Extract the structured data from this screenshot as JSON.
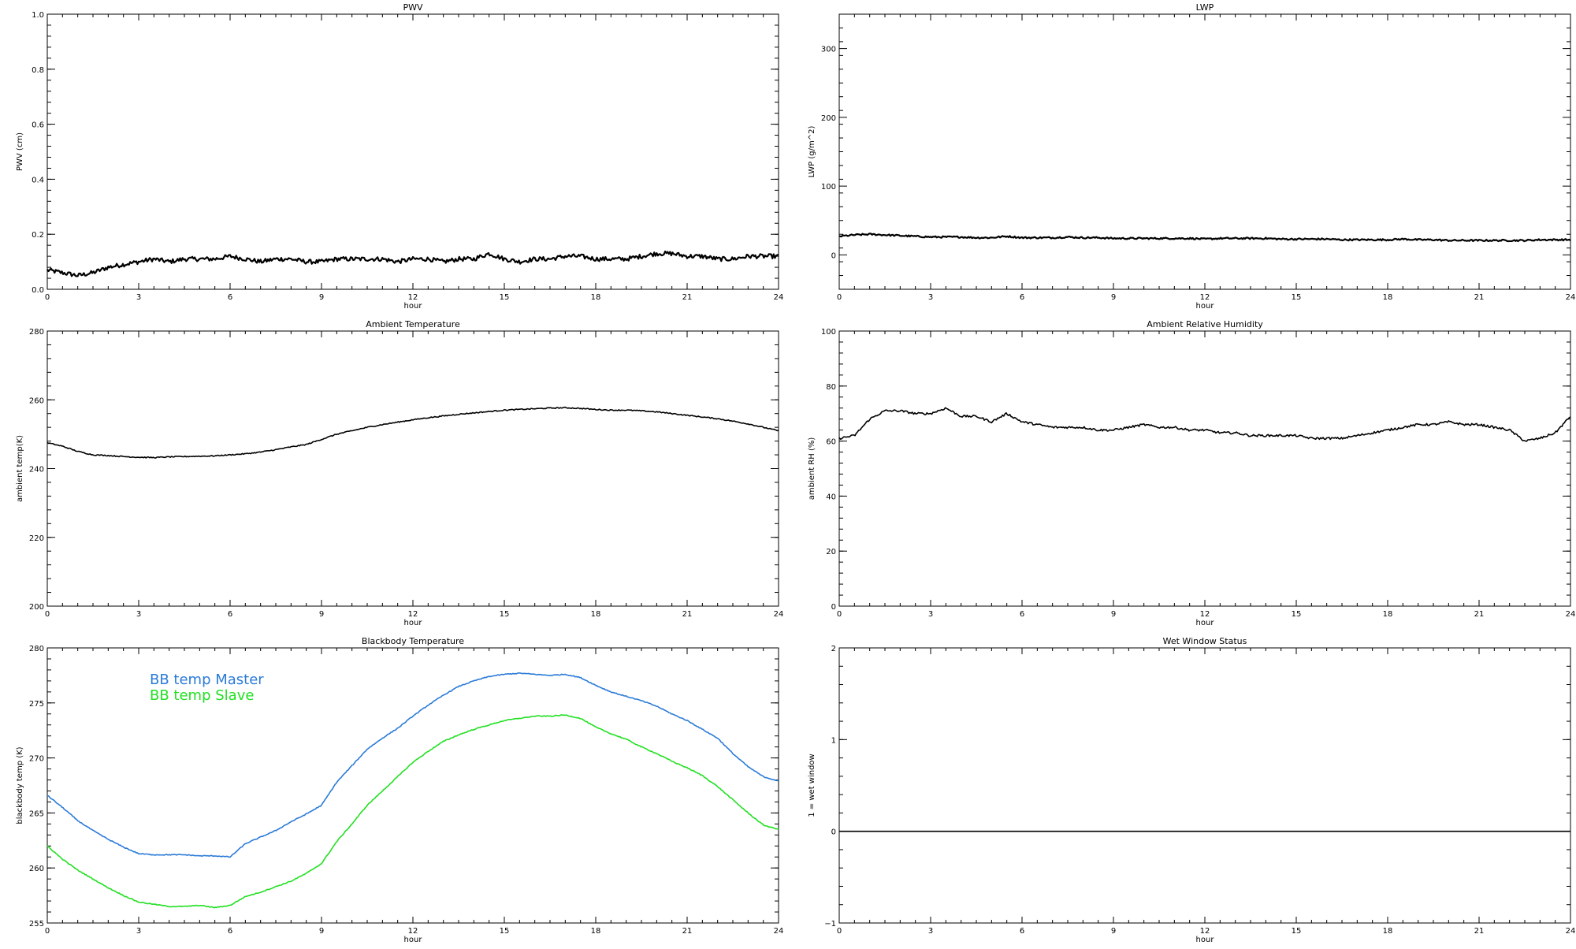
{
  "chart_data": [
    {
      "type": "line",
      "title": "PWV",
      "xlabel": "hour",
      "ylabel": "PWV (cm)",
      "xlim": [
        0,
        24
      ],
      "ylim": [
        0.0,
        1.0
      ],
      "xticks": [
        "0",
        "3",
        "6",
        "9",
        "12",
        "15",
        "18",
        "21",
        "24"
      ],
      "yticks": [
        "0.0",
        "0.2",
        "0.4",
        "0.6",
        "0.8",
        "1.0"
      ],
      "series": [
        {
          "color": "#000000",
          "noise": 0.008,
          "x": [
            0,
            0.5,
            1,
            1.5,
            2,
            2.5,
            3,
            3.5,
            4,
            4.5,
            5,
            5.5,
            6,
            6.5,
            7,
            7.5,
            8,
            8.5,
            9,
            9.5,
            10,
            10.5,
            11,
            11.5,
            12,
            12.5,
            13,
            13.5,
            14,
            14.5,
            15,
            15.5,
            16,
            16.5,
            17,
            17.5,
            18,
            18.5,
            19,
            19.5,
            20,
            20.5,
            21,
            21.5,
            22,
            22.5,
            23,
            23.5,
            24
          ],
          "y": [
            0.07,
            0.06,
            0.05,
            0.06,
            0.08,
            0.09,
            0.1,
            0.11,
            0.1,
            0.11,
            0.11,
            0.11,
            0.12,
            0.11,
            0.1,
            0.11,
            0.11,
            0.1,
            0.1,
            0.11,
            0.11,
            0.11,
            0.11,
            0.1,
            0.11,
            0.11,
            0.1,
            0.11,
            0.11,
            0.13,
            0.11,
            0.1,
            0.11,
            0.11,
            0.12,
            0.12,
            0.11,
            0.11,
            0.11,
            0.12,
            0.13,
            0.13,
            0.12,
            0.12,
            0.11,
            0.11,
            0.12,
            0.12,
            0.12
          ]
        }
      ]
    },
    {
      "type": "line",
      "title": "LWP",
      "xlabel": "hour",
      "ylabel": "LWP (g/m^2)",
      "xlim": [
        0,
        24
      ],
      "ylim": [
        -50,
        350
      ],
      "xticks": [
        "0",
        "3",
        "6",
        "9",
        "12",
        "15",
        "18",
        "21",
        "24"
      ],
      "yticks": [
        "0",
        "100",
        "200",
        "300"
      ],
      "series": [
        {
          "color": "#000000",
          "noise": 1.2,
          "x": [
            0,
            0.5,
            1,
            1.5,
            2,
            2.5,
            3,
            3.5,
            4,
            4.5,
            5,
            5.5,
            6,
            6.5,
            7,
            7.5,
            8,
            8.5,
            9,
            9.5,
            10,
            10.5,
            11,
            11.5,
            12,
            12.5,
            13,
            13.5,
            14,
            14.5,
            15,
            15.5,
            16,
            16.5,
            17,
            17.5,
            18,
            18.5,
            19,
            19.5,
            20,
            20.5,
            21,
            21.5,
            22,
            22.5,
            23,
            23.5,
            24
          ],
          "y": [
            27,
            29,
            30,
            29,
            28,
            27,
            26,
            26,
            26,
            25,
            25,
            27,
            25,
            25,
            25,
            26,
            25,
            25,
            24,
            24,
            24,
            24,
            24,
            24,
            23,
            24,
            24,
            24,
            24,
            23,
            23,
            23,
            23,
            22,
            22,
            22,
            22,
            23,
            22,
            22,
            21,
            21,
            21,
            21,
            21,
            21,
            22,
            22,
            22
          ]
        }
      ]
    },
    {
      "type": "line",
      "title": "Ambient Temperature",
      "xlabel": "hour",
      "ylabel": "ambient temp(K)",
      "xlim": [
        0,
        24
      ],
      "ylim": [
        200,
        280
      ],
      "xticks": [
        "0",
        "3",
        "6",
        "9",
        "12",
        "15",
        "18",
        "21",
        "24"
      ],
      "yticks": [
        "200",
        "220",
        "240",
        "260",
        "280"
      ],
      "series": [
        {
          "color": "#000000",
          "noise": 0.15,
          "x": [
            0,
            0.5,
            1,
            1.5,
            2,
            2.5,
            3,
            3.5,
            4,
            4.5,
            5,
            5.5,
            6,
            6.5,
            7,
            7.5,
            8,
            8.5,
            9,
            9.5,
            10,
            10.5,
            11,
            11.5,
            12,
            12.5,
            13,
            13.5,
            14,
            14.5,
            15,
            15.5,
            16,
            16.5,
            17,
            17.5,
            18,
            18.5,
            19,
            19.5,
            20,
            20.5,
            21,
            21.5,
            22,
            22.5,
            23,
            23.5,
            24
          ],
          "y": [
            247.5,
            246.5,
            245,
            244,
            243.8,
            243.5,
            243.3,
            243.2,
            243.4,
            243.5,
            243.6,
            243.7,
            244,
            244.3,
            244.8,
            245.5,
            246.3,
            247,
            248.5,
            250,
            251,
            252,
            252.8,
            253.5,
            254.2,
            254.8,
            255.3,
            255.8,
            256.2,
            256.6,
            257,
            257.2,
            257.4,
            257.6,
            257.7,
            257.5,
            257.2,
            257,
            257,
            256.8,
            256.5,
            256,
            255.5,
            255,
            254.5,
            253.8,
            253,
            252,
            251
          ]
        }
      ]
    },
    {
      "type": "line",
      "title": "Ambient Relative Humidity",
      "xlabel": "hour",
      "ylabel": "ambient RH (%)",
      "xlim": [
        0,
        24
      ],
      "ylim": [
        0,
        100
      ],
      "xticks": [
        "0",
        "3",
        "6",
        "9",
        "12",
        "15",
        "18",
        "21",
        "24"
      ],
      "yticks": [
        "0",
        "20",
        "40",
        "60",
        "80",
        "100"
      ],
      "series": [
        {
          "color": "#000000",
          "noise": 0.4,
          "x": [
            0,
            0.5,
            1,
            1.5,
            2,
            2.5,
            3,
            3.5,
            4,
            4.5,
            5,
            5.5,
            6,
            6.5,
            7,
            7.5,
            8,
            8.5,
            9,
            9.5,
            10,
            10.5,
            11,
            11.5,
            12,
            12.5,
            13,
            13.5,
            14,
            14.5,
            15,
            15.5,
            16,
            16.5,
            17,
            17.5,
            18,
            18.5,
            19,
            19.5,
            20,
            20.5,
            21,
            21.5,
            22,
            22.5,
            23,
            23.5,
            24
          ],
          "y": [
            61,
            62,
            68,
            71,
            71,
            70,
            70,
            72,
            69,
            69,
            67,
            70,
            67,
            66,
            65,
            65,
            65,
            64,
            64,
            65,
            66,
            65,
            65,
            64,
            64,
            63,
            63,
            62,
            62,
            62,
            62,
            61,
            61,
            61,
            62,
            63,
            64,
            65,
            66,
            66,
            67,
            66,
            66,
            65,
            64,
            60,
            61,
            63,
            69
          ]
        }
      ]
    },
    {
      "type": "line",
      "title": "Blackbody Temperature",
      "xlabel": "hour",
      "ylabel": "blackbody temp (K)",
      "xlim": [
        0,
        24
      ],
      "ylim": [
        255,
        280
      ],
      "xticks": [
        "0",
        "3",
        "6",
        "9",
        "12",
        "15",
        "18",
        "21",
        "24"
      ],
      "yticks": [
        "255",
        "260",
        "265",
        "270",
        "275",
        "280"
      ],
      "legend": [
        "BB temp Master",
        "BB temp Slave"
      ],
      "series": [
        {
          "name": "BB temp Master",
          "color": "#2b7bd8",
          "noise": 0.04,
          "x": [
            0,
            0.5,
            1,
            1.5,
            2,
            2.5,
            3,
            3.5,
            4,
            4.5,
            5,
            5.5,
            6,
            6.5,
            7,
            7.5,
            8,
            8.5,
            9,
            9.5,
            10,
            10.5,
            11,
            11.5,
            12,
            12.5,
            13,
            13.5,
            14,
            14.5,
            15,
            15.5,
            16,
            16.5,
            17,
            17.5,
            18,
            18.5,
            19,
            19.5,
            20,
            20.5,
            21,
            21.5,
            22,
            22.5,
            23,
            23.5,
            24
          ],
          "y": [
            266.6,
            265.5,
            264.3,
            263.4,
            262.6,
            261.9,
            261.3,
            261.2,
            261.2,
            261.2,
            261.1,
            261.1,
            261.0,
            262.2,
            262.8,
            263.4,
            264.2,
            264.9,
            265.7,
            267.8,
            269.3,
            270.8,
            271.8,
            272.7,
            273.8,
            274.8,
            275.7,
            276.5,
            277.0,
            277.4,
            277.6,
            277.7,
            277.6,
            277.5,
            277.6,
            277.3,
            276.6,
            276.0,
            275.6,
            275.2,
            274.7,
            274.0,
            273.4,
            272.6,
            271.8,
            270.4,
            269.2,
            268.3,
            267.9
          ]
        },
        {
          "name": "BB temp Slave",
          "color": "#22e022",
          "noise": 0.04,
          "x": [
            0,
            0.5,
            1,
            1.5,
            2,
            2.5,
            3,
            3.5,
            4,
            4.5,
            5,
            5.5,
            6,
            6.5,
            7,
            7.5,
            8,
            8.5,
            9,
            9.5,
            10,
            10.5,
            11,
            11.5,
            12,
            12.5,
            13,
            13.5,
            14,
            14.5,
            15,
            15.5,
            16,
            16.5,
            17,
            17.5,
            18,
            18.5,
            19,
            19.5,
            20,
            20.5,
            21,
            21.5,
            22,
            22.5,
            23,
            23.5,
            24
          ],
          "y": [
            262.0,
            260.8,
            259.8,
            259.0,
            258.2,
            257.5,
            256.9,
            256.7,
            256.5,
            256.5,
            256.6,
            256.4,
            256.6,
            257.4,
            257.8,
            258.3,
            258.8,
            259.5,
            260.4,
            262.4,
            264.0,
            265.7,
            267.0,
            268.3,
            269.6,
            270.6,
            271.5,
            272.1,
            272.6,
            273.0,
            273.4,
            273.6,
            273.8,
            273.8,
            273.9,
            273.6,
            272.8,
            272.2,
            271.7,
            271.0,
            270.4,
            269.7,
            269.1,
            268.4,
            267.4,
            266.2,
            265.0,
            263.9,
            263.5
          ]
        }
      ]
    },
    {
      "type": "line",
      "title": "Wet Window Status",
      "xlabel": "hour",
      "ylabel": "1 = wet window",
      "xlim": [
        0,
        24
      ],
      "ylim": [
        -1,
        2
      ],
      "xticks": [
        "0",
        "3",
        "6",
        "9",
        "12",
        "15",
        "18",
        "21",
        "24"
      ],
      "yticks": [
        "−1",
        "0",
        "1",
        "2"
      ],
      "series": [
        {
          "color": "#000000",
          "noise": 0,
          "x": [
            0,
            24
          ],
          "y": [
            0,
            0
          ]
        }
      ]
    }
  ]
}
